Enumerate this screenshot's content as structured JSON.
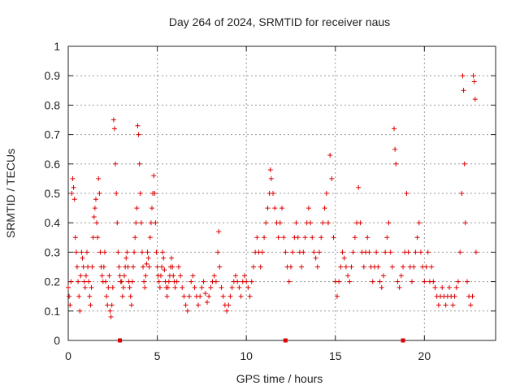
{
  "chart_data": {
    "type": "scatter",
    "title": "Day 264 of 2024, SRMTID for receiver naus",
    "xlabel": "GPS time / hours",
    "ylabel": "SRMTID / TECUs",
    "xlim": [
      0,
      24
    ],
    "ylim": [
      0,
      1
    ],
    "x_ticks": [
      0,
      5,
      10,
      15,
      20
    ],
    "x_tick_labels": [
      "0",
      "5",
      "10",
      "15",
      "20"
    ],
    "y_ticks": [
      0,
      0.1,
      0.2,
      0.3,
      0.4,
      0.5,
      0.6,
      0.7,
      0.8,
      0.9,
      1
    ],
    "y_tick_labels": [
      "0",
      "0.1",
      "0.2",
      "0.3",
      "0.4",
      "0.5",
      "0.6",
      "0.7",
      "0.8",
      "0.9",
      "1"
    ],
    "grid": true,
    "marker": "plus",
    "color": "#dd0000",
    "series": [
      {
        "name": "SRMTID",
        "points": [
          [
            0.0,
            0.18
          ],
          [
            0.05,
            0.15
          ],
          [
            0.1,
            0.12
          ],
          [
            0.15,
            0.2
          ],
          [
            0.2,
            0.5
          ],
          [
            0.25,
            0.55
          ],
          [
            0.3,
            0.52
          ],
          [
            0.35,
            0.48
          ],
          [
            0.4,
            0.35
          ],
          [
            0.45,
            0.3
          ],
          [
            0.5,
            0.25
          ],
          [
            0.55,
            0.2
          ],
          [
            0.6,
            0.15
          ],
          [
            0.65,
            0.1
          ],
          [
            0.7,
            0.22
          ],
          [
            0.75,
            0.3
          ],
          [
            0.8,
            0.28
          ],
          [
            0.85,
            0.25
          ],
          [
            0.9,
            0.2
          ],
          [
            0.95,
            0.18
          ],
          [
            1.0,
            0.22
          ],
          [
            1.05,
            0.3
          ],
          [
            1.1,
            0.25
          ],
          [
            1.15,
            0.2
          ],
          [
            1.2,
            0.15
          ],
          [
            1.25,
            0.12
          ],
          [
            1.3,
            0.18
          ],
          [
            1.35,
            0.25
          ],
          [
            1.4,
            0.35
          ],
          [
            1.45,
            0.42
          ],
          [
            1.5,
            0.45
          ],
          [
            1.55,
            0.48
          ],
          [
            1.6,
            0.4
          ],
          [
            1.65,
            0.35
          ],
          [
            1.7,
            0.55
          ],
          [
            1.75,
            0.5
          ],
          [
            1.8,
            0.3
          ],
          [
            1.85,
            0.25
          ],
          [
            1.9,
            0.22
          ],
          [
            1.95,
            0.2
          ],
          [
            2.0,
            0.25
          ],
          [
            2.05,
            0.3
          ],
          [
            2.1,
            0.2
          ],
          [
            2.15,
            0.15
          ],
          [
            2.2,
            0.12
          ],
          [
            2.25,
            0.18
          ],
          [
            2.3,
            0.22
          ],
          [
            2.35,
            0.1
          ],
          [
            2.4,
            0.08
          ],
          [
            2.45,
            0.12
          ],
          [
            2.5,
            0.18
          ],
          [
            2.55,
            0.75
          ],
          [
            2.6,
            0.72
          ],
          [
            2.65,
            0.6
          ],
          [
            2.7,
            0.5
          ],
          [
            2.75,
            0.4
          ],
          [
            2.8,
            0.3
          ],
          [
            2.85,
            0.25
          ],
          [
            2.9,
            0.22
          ],
          [
            2.95,
            0.2
          ],
          [
            3.0,
            0.2
          ],
          [
            3.05,
            0.15
          ],
          [
            3.1,
            0.18
          ],
          [
            3.15,
            0.22
          ],
          [
            3.2,
            0.25
          ],
          [
            3.25,
            0.28
          ],
          [
            3.3,
            0.3
          ],
          [
            3.35,
            0.25
          ],
          [
            3.4,
            0.2
          ],
          [
            3.45,
            0.18
          ],
          [
            3.5,
            0.15
          ],
          [
            3.55,
            0.12
          ],
          [
            3.6,
            0.2
          ],
          [
            3.65,
            0.25
          ],
          [
            3.7,
            0.3
          ],
          [
            3.75,
            0.35
          ],
          [
            3.8,
            0.4
          ],
          [
            3.85,
            0.45
          ],
          [
            3.9,
            0.73
          ],
          [
            3.95,
            0.7
          ],
          [
            4.0,
            0.6
          ],
          [
            4.05,
            0.5
          ],
          [
            4.1,
            0.4
          ],
          [
            4.15,
            0.3
          ],
          [
            4.2,
            0.25
          ],
          [
            4.25,
            0.2
          ],
          [
            4.3,
            0.18
          ],
          [
            4.35,
            0.22
          ],
          [
            4.4,
            0.26
          ],
          [
            4.45,
            0.3
          ],
          [
            4.5,
            0.28
          ],
          [
            4.55,
            0.25
          ],
          [
            4.6,
            0.35
          ],
          [
            4.65,
            0.4
          ],
          [
            4.7,
            0.45
          ],
          [
            4.75,
            0.5
          ],
          [
            4.8,
            0.56
          ],
          [
            4.85,
            0.5
          ],
          [
            4.9,
            0.4
          ],
          [
            4.95,
            0.3
          ],
          [
            5.0,
            0.25
          ],
          [
            5.05,
            0.22
          ],
          [
            5.1,
            0.2
          ],
          [
            5.15,
            0.18
          ],
          [
            5.2,
            0.22
          ],
          [
            5.25,
            0.25
          ],
          [
            5.3,
            0.3
          ],
          [
            5.35,
            0.28
          ],
          [
            5.4,
            0.24
          ],
          [
            5.45,
            0.2
          ],
          [
            5.5,
            0.18
          ],
          [
            5.55,
            0.15
          ],
          [
            5.6,
            0.18
          ],
          [
            5.65,
            0.2
          ],
          [
            5.7,
            0.22
          ],
          [
            5.75,
            0.25
          ],
          [
            5.8,
            0.28
          ],
          [
            5.85,
            0.25
          ],
          [
            5.9,
            0.22
          ],
          [
            5.95,
            0.2
          ],
          [
            6.0,
            0.18
          ],
          [
            6.1,
            0.2
          ],
          [
            6.2,
            0.25
          ],
          [
            6.3,
            0.22
          ],
          [
            6.4,
            0.18
          ],
          [
            6.5,
            0.15
          ],
          [
            6.6,
            0.12
          ],
          [
            6.7,
            0.1
          ],
          [
            6.8,
            0.15
          ],
          [
            6.9,
            0.2
          ],
          [
            7.0,
            0.22
          ],
          [
            7.1,
            0.18
          ],
          [
            7.2,
            0.15
          ],
          [
            7.3,
            0.12
          ],
          [
            7.4,
            0.15
          ],
          [
            7.5,
            0.18
          ],
          [
            7.6,
            0.2
          ],
          [
            7.7,
            0.16
          ],
          [
            7.8,
            0.13
          ],
          [
            7.9,
            0.15
          ],
          [
            8.0,
            0.18
          ],
          [
            8.1,
            0.2
          ],
          [
            8.2,
            0.22
          ],
          [
            8.3,
            0.2
          ],
          [
            8.4,
            0.3
          ],
          [
            8.45,
            0.37
          ],
          [
            8.5,
            0.25
          ],
          [
            8.6,
            0.18
          ],
          [
            8.7,
            0.15
          ],
          [
            8.8,
            0.12
          ],
          [
            8.9,
            0.1
          ],
          [
            9.0,
            0.12
          ],
          [
            9.1,
            0.15
          ],
          [
            9.2,
            0.18
          ],
          [
            9.3,
            0.2
          ],
          [
            9.4,
            0.22
          ],
          [
            9.5,
            0.2
          ],
          [
            9.6,
            0.18
          ],
          [
            9.7,
            0.15
          ],
          [
            9.8,
            0.2
          ],
          [
            9.9,
            0.22
          ],
          [
            10.0,
            0.2
          ],
          [
            10.1,
            0.18
          ],
          [
            10.2,
            0.15
          ],
          [
            10.3,
            0.2
          ],
          [
            10.4,
            0.25
          ],
          [
            10.5,
            0.3
          ],
          [
            10.6,
            0.35
          ],
          [
            10.7,
            0.3
          ],
          [
            10.8,
            0.25
          ],
          [
            10.9,
            0.3
          ],
          [
            11.0,
            0.35
          ],
          [
            11.1,
            0.4
          ],
          [
            11.2,
            0.45
          ],
          [
            11.3,
            0.5
          ],
          [
            11.35,
            0.58
          ],
          [
            11.4,
            0.55
          ],
          [
            11.5,
            0.5
          ],
          [
            11.6,
            0.45
          ],
          [
            11.7,
            0.4
          ],
          [
            11.8,
            0.35
          ],
          [
            11.9,
            0.4
          ],
          [
            12.0,
            0.45
          ],
          [
            12.1,
            0.35
          ],
          [
            12.2,
            0.3
          ],
          [
            12.3,
            0.25
          ],
          [
            12.4,
            0.2
          ],
          [
            12.5,
            0.25
          ],
          [
            12.6,
            0.3
          ],
          [
            12.7,
            0.35
          ],
          [
            12.8,
            0.4
          ],
          [
            12.9,
            0.35
          ],
          [
            13.0,
            0.3
          ],
          [
            13.1,
            0.25
          ],
          [
            13.2,
            0.3
          ],
          [
            13.3,
            0.35
          ],
          [
            13.4,
            0.4
          ],
          [
            13.5,
            0.45
          ],
          [
            13.6,
            0.4
          ],
          [
            13.7,
            0.35
          ],
          [
            13.8,
            0.3
          ],
          [
            13.9,
            0.28
          ],
          [
            14.0,
            0.25
          ],
          [
            14.1,
            0.3
          ],
          [
            14.2,
            0.35
          ],
          [
            14.3,
            0.4
          ],
          [
            14.4,
            0.45
          ],
          [
            14.5,
            0.5
          ],
          [
            14.6,
            0.4
          ],
          [
            14.7,
            0.63
          ],
          [
            14.8,
            0.55
          ],
          [
            14.9,
            0.35
          ],
          [
            15.0,
            0.2
          ],
          [
            15.1,
            0.15
          ],
          [
            15.2,
            0.2
          ],
          [
            15.3,
            0.25
          ],
          [
            15.4,
            0.3
          ],
          [
            15.5,
            0.28
          ],
          [
            15.6,
            0.25
          ],
          [
            15.7,
            0.22
          ],
          [
            15.8,
            0.2
          ],
          [
            15.9,
            0.25
          ],
          [
            16.0,
            0.3
          ],
          [
            16.1,
            0.35
          ],
          [
            16.2,
            0.4
          ],
          [
            16.3,
            0.52
          ],
          [
            16.4,
            0.4
          ],
          [
            16.5,
            0.3
          ],
          [
            16.6,
            0.25
          ],
          [
            16.7,
            0.3
          ],
          [
            16.8,
            0.35
          ],
          [
            16.9,
            0.3
          ],
          [
            17.0,
            0.25
          ],
          [
            17.1,
            0.2
          ],
          [
            17.2,
            0.25
          ],
          [
            17.3,
            0.3
          ],
          [
            17.4,
            0.25
          ],
          [
            17.5,
            0.2
          ],
          [
            17.6,
            0.18
          ],
          [
            17.7,
            0.22
          ],
          [
            17.8,
            0.3
          ],
          [
            17.9,
            0.35
          ],
          [
            18.0,
            0.4
          ],
          [
            18.1,
            0.3
          ],
          [
            18.2,
            0.25
          ],
          [
            18.3,
            0.72
          ],
          [
            18.35,
            0.65
          ],
          [
            18.4,
            0.6
          ],
          [
            18.5,
            0.2
          ],
          [
            18.6,
            0.18
          ],
          [
            18.7,
            0.22
          ],
          [
            18.8,
            0.25
          ],
          [
            18.9,
            0.3
          ],
          [
            19.0,
            0.5
          ],
          [
            19.1,
            0.3
          ],
          [
            19.2,
            0.25
          ],
          [
            19.3,
            0.2
          ],
          [
            19.4,
            0.25
          ],
          [
            19.5,
            0.3
          ],
          [
            19.6,
            0.35
          ],
          [
            19.7,
            0.4
          ],
          [
            19.8,
            0.3
          ],
          [
            19.9,
            0.25
          ],
          [
            20.0,
            0.2
          ],
          [
            20.1,
            0.25
          ],
          [
            20.2,
            0.3
          ],
          [
            20.3,
            0.2
          ],
          [
            20.4,
            0.25
          ],
          [
            20.5,
            0.2
          ],
          [
            20.6,
            0.18
          ],
          [
            20.7,
            0.15
          ],
          [
            20.8,
            0.12
          ],
          [
            20.9,
            0.15
          ],
          [
            21.0,
            0.18
          ],
          [
            21.1,
            0.15
          ],
          [
            21.2,
            0.12
          ],
          [
            21.3,
            0.15
          ],
          [
            21.4,
            0.18
          ],
          [
            21.5,
            0.15
          ],
          [
            21.6,
            0.12
          ],
          [
            21.7,
            0.15
          ],
          [
            21.8,
            0.18
          ],
          [
            21.9,
            0.2
          ],
          [
            22.0,
            0.3
          ],
          [
            22.1,
            0.5
          ],
          [
            22.15,
            0.9
          ],
          [
            22.2,
            0.85
          ],
          [
            22.25,
            0.6
          ],
          [
            22.3,
            0.4
          ],
          [
            22.4,
            0.2
          ],
          [
            22.5,
            0.15
          ],
          [
            22.6,
            0.12
          ],
          [
            22.7,
            0.15
          ],
          [
            22.75,
            0.9
          ],
          [
            22.8,
            0.88
          ],
          [
            22.85,
            0.82
          ],
          [
            22.9,
            0.3
          ]
        ]
      }
    ],
    "zero_markers": [
      2.9,
      12.2,
      18.8
    ]
  }
}
